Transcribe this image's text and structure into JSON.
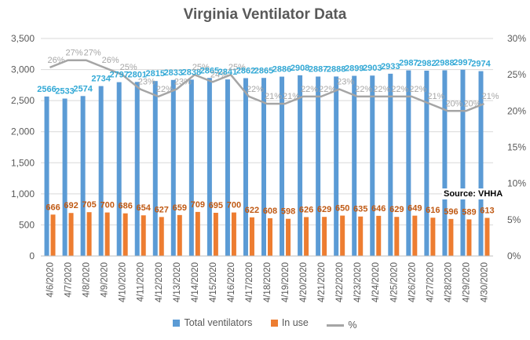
{
  "chart_data": {
    "type": "bar",
    "title": "Virginia Ventilator Data",
    "source_note": "Source: VHHA",
    "categories": [
      "4/6/2020",
      "4/7/2020",
      "4/8/2020",
      "4/9/2020",
      "4/10/2020",
      "4/11/2020",
      "4/12/2020",
      "4/13/2020",
      "4/14/2020",
      "4/15/2020",
      "4/16/2020",
      "4/17/2020",
      "4/18/2020",
      "4/19/2020",
      "4/20/2020",
      "4/21/2020",
      "4/22/2020",
      "4/23/2020",
      "4/24/2020",
      "4/25/2020",
      "4/26/2020",
      "4/27/2020",
      "4/28/2020",
      "4/29/2020",
      "4/30/2020"
    ],
    "series": [
      {
        "name": "Total ventilators",
        "type": "bar",
        "axis": "left",
        "color": "#5b9bd5",
        "values": [
          2566,
          2533,
          2574,
          2734,
          2797,
          2801,
          2815,
          2833,
          2838,
          2865,
          2841,
          2862,
          2865,
          2886,
          2908,
          2887,
          2888,
          2899,
          2903,
          2933,
          2987,
          2982,
          2988,
          2997,
          2974
        ]
      },
      {
        "name": "In use",
        "type": "bar",
        "axis": "left",
        "color": "#ed7d31",
        "values": [
          666,
          692,
          705,
          700,
          686,
          654,
          627,
          659,
          709,
          695,
          700,
          622,
          608,
          598,
          626,
          629,
          650,
          635,
          646,
          629,
          649,
          616,
          596,
          589,
          613
        ]
      },
      {
        "name": "%",
        "type": "line",
        "axis": "right",
        "color": "#a5a5a5",
        "values": [
          0.26,
          0.27,
          0.27,
          0.26,
          0.25,
          0.23,
          0.22,
          0.23,
          0.25,
          0.24,
          0.25,
          0.22,
          0.21,
          0.21,
          0.22,
          0.22,
          0.23,
          0.22,
          0.22,
          0.22,
          0.22,
          0.21,
          0.2,
          0.2,
          0.21
        ],
        "labels": [
          "26%",
          "27%",
          "27%",
          "26%",
          "25%",
          "23%",
          "22%",
          "23%",
          "25%",
          "24%",
          "25%",
          "22%",
          "21%",
          "21%",
          "22%",
          "22%",
          "23%",
          "22%",
          "22%",
          "22%",
          "22%",
          "21%",
          "20%",
          "20%",
          "21%"
        ]
      }
    ],
    "ylim": [
      0,
      3500
    ],
    "yticks": [
      "0",
      "500",
      "1,000",
      "1,500",
      "2,000",
      "2,500",
      "3,000",
      "3,500"
    ],
    "y2lim": [
      0,
      0.3
    ],
    "y2ticks": [
      "0%",
      "5%",
      "10%",
      "15%",
      "20%",
      "25%",
      "30%"
    ],
    "xlabel": "",
    "ylabel": "",
    "grid": true,
    "legend": "bottom"
  }
}
